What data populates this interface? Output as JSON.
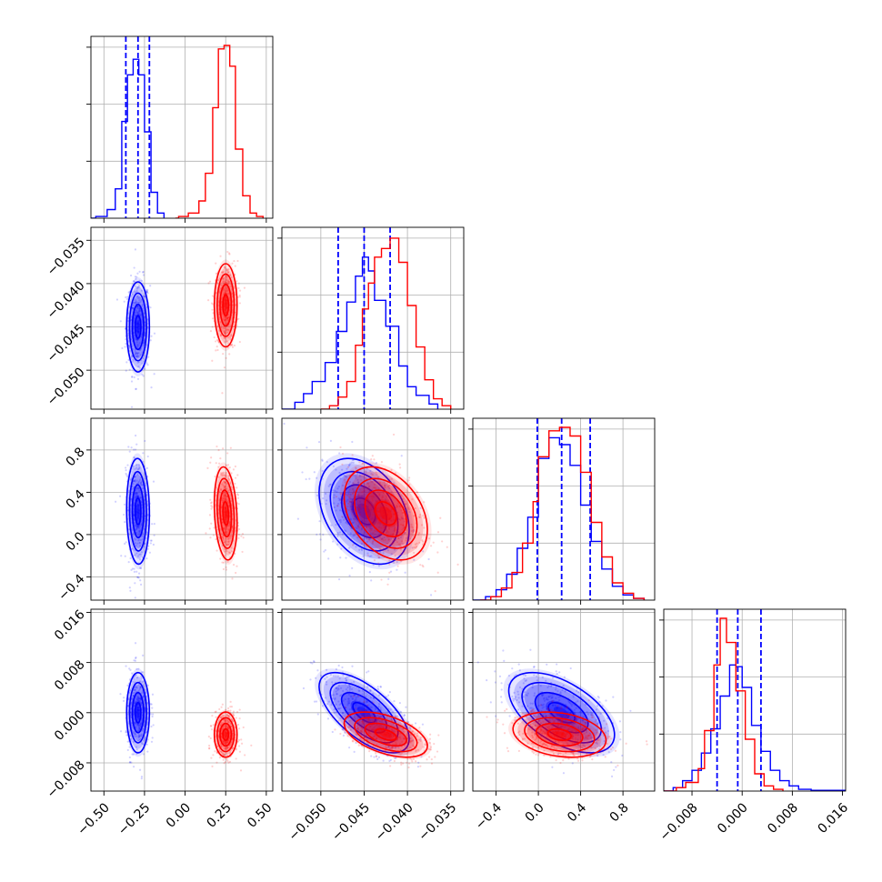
{
  "colors": {
    "blue": "#0000ff",
    "red": "#ff0000",
    "grid": "#b0b0b0"
  },
  "chart_data": {
    "type": "corner",
    "grid": true,
    "legend": "none",
    "parameters": [
      {
        "ticks": [
          -0.5,
          -0.25,
          0.0,
          0.25,
          0.5
        ],
        "tick_labels": [
          "−0.50",
          "−0.25",
          "0.00",
          "0.25",
          "0.50"
        ],
        "range": [
          -0.58,
          0.54
        ]
      },
      {
        "ticks": [
          -0.05,
          -0.045,
          -0.04,
          -0.035
        ],
        "tick_labels": [
          "−0.050",
          "−0.045",
          "−0.040",
          "−0.035"
        ],
        "range": [
          -0.0545,
          -0.0335
        ]
      },
      {
        "ticks": [
          -0.4,
          0.0,
          0.4,
          0.8
        ],
        "tick_labels": [
          "−0.4",
          "0.0",
          "0.4",
          "0.8"
        ],
        "range": [
          -0.62,
          1.1
        ]
      },
      {
        "ticks": [
          -0.008,
          0.0,
          0.008,
          0.016
        ],
        "tick_labels": [
          "−0.008",
          "0.000",
          "0.008",
          "0.016"
        ],
        "range": [
          -0.0125,
          0.0165
        ]
      }
    ],
    "series": [
      {
        "color": "#0000ff",
        "means": [
          -0.29,
          -0.045,
          0.22,
          0.0
        ],
        "sds": [
          0.035,
          0.0026,
          0.25,
          0.0032
        ],
        "correlations": [
          [
            0,
            2,
            -0.05
          ],
          [
            0,
            3,
            0.0
          ],
          [
            1,
            2,
            -0.35
          ],
          [
            1,
            3,
            -0.65
          ],
          [
            2,
            3,
            -0.55
          ]
        ],
        "quantiles": [
          [
            -0.365,
            -0.29,
            -0.22
          ],
          [
            -0.048,
            -0.045,
            -0.042
          ],
          [
            -0.01,
            0.22,
            0.49
          ],
          [
            -0.004,
            -0.0007,
            0.003
          ]
        ],
        "hist1d": [
          [
            [
              -0.58,
              0
            ],
            [
              -0.55,
              0.01
            ],
            [
              -0.48,
              0.05
            ],
            [
              -0.43,
              0.17
            ],
            [
              -0.39,
              0.56
            ],
            [
              -0.355,
              0.83
            ],
            [
              -0.32,
              0.92
            ],
            [
              -0.285,
              0.83
            ],
            [
              -0.25,
              0.5
            ],
            [
              -0.21,
              0.15
            ],
            [
              -0.17,
              0.03
            ],
            [
              -0.13,
              0
            ]
          ],
          [
            [
              -0.0545,
              0
            ],
            [
              -0.053,
              0.04
            ],
            [
              -0.052,
              0.09
            ],
            [
              -0.051,
              0.16
            ],
            [
              -0.0495,
              0.27
            ],
            [
              -0.0482,
              0.45
            ],
            [
              -0.047,
              0.62
            ],
            [
              -0.046,
              0.77
            ],
            [
              -0.0452,
              0.88
            ],
            [
              -0.0445,
              0.8
            ],
            [
              -0.0438,
              0.63
            ],
            [
              -0.0425,
              0.48
            ],
            [
              -0.041,
              0.25
            ],
            [
              -0.04,
              0.13
            ],
            [
              -0.039,
              0.08
            ],
            [
              -0.0375,
              0.03
            ],
            [
              -0.0365,
              0
            ]
          ],
          [
            [
              -0.62,
              0
            ],
            [
              -0.5,
              0.02
            ],
            [
              -0.4,
              0.06
            ],
            [
              -0.3,
              0.15
            ],
            [
              -0.2,
              0.3
            ],
            [
              -0.1,
              0.48
            ],
            [
              0.0,
              0.82
            ],
            [
              0.1,
              0.94
            ],
            [
              0.2,
              0.9
            ],
            [
              0.3,
              0.78
            ],
            [
              0.4,
              0.55
            ],
            [
              0.5,
              0.34
            ],
            [
              0.6,
              0.18
            ],
            [
              0.7,
              0.08
            ],
            [
              0.8,
              0.03
            ],
            [
              0.9,
              0.01
            ],
            [
              1.0,
              0
            ]
          ],
          [
            [
              -0.0125,
              0
            ],
            [
              -0.011,
              0.02
            ],
            [
              -0.0095,
              0.06
            ],
            [
              -0.008,
              0.12
            ],
            [
              -0.0065,
              0.22
            ],
            [
              -0.005,
              0.36
            ],
            [
              -0.0035,
              0.55
            ],
            [
              -0.002,
              0.73
            ],
            [
              -0.001,
              0.72
            ],
            [
              0.0,
              0.6
            ],
            [
              0.0015,
              0.38
            ],
            [
              0.003,
              0.23
            ],
            [
              0.0045,
              0.12
            ],
            [
              0.006,
              0.06
            ],
            [
              0.0075,
              0.03
            ],
            [
              0.009,
              0.01
            ],
            [
              0.011,
              0.004
            ],
            [
              0.0165,
              0
            ]
          ]
        ]
      },
      {
        "color": "#ff0000",
        "means": [
          0.25,
          -0.0425,
          0.2,
          -0.0035
        ],
        "sds": [
          0.035,
          0.0024,
          0.22,
          0.0018
        ],
        "correlations": [
          [
            0,
            2,
            -0.2
          ],
          [
            0,
            3,
            0.0
          ],
          [
            1,
            2,
            -0.35
          ],
          [
            1,
            3,
            -0.5
          ],
          [
            2,
            3,
            -0.25
          ]
        ],
        "quantiles": null,
        "hist1d": [
          [
            [
              -0.06,
              0
            ],
            [
              -0.04,
              0.01
            ],
            [
              0.02,
              0.03
            ],
            [
              0.085,
              0.1
            ],
            [
              0.125,
              0.26
            ],
            [
              0.17,
              0.64
            ],
            [
              0.205,
              0.98
            ],
            [
              0.24,
              1.0
            ],
            [
              0.275,
              0.88
            ],
            [
              0.31,
              0.4
            ],
            [
              0.355,
              0.13
            ],
            [
              0.4,
              0.03
            ],
            [
              0.44,
              0.01
            ],
            [
              0.48,
              0
            ]
          ],
          [
            [
              -0.05,
              0
            ],
            [
              -0.049,
              0.02
            ],
            [
              -0.048,
              0.07
            ],
            [
              -0.047,
              0.16
            ],
            [
              -0.046,
              0.37
            ],
            [
              -0.0452,
              0.58
            ],
            [
              -0.0445,
              0.73
            ],
            [
              -0.0438,
              0.88
            ],
            [
              -0.043,
              0.93
            ],
            [
              -0.042,
              0.99
            ],
            [
              -0.041,
              0.85
            ],
            [
              -0.04,
              0.6
            ],
            [
              -0.039,
              0.36
            ],
            [
              -0.038,
              0.17
            ],
            [
              -0.037,
              0.06
            ],
            [
              -0.036,
              0.02
            ],
            [
              -0.035,
              0
            ]
          ],
          [
            [
              -0.55,
              0
            ],
            [
              -0.45,
              0.02
            ],
            [
              -0.35,
              0.07
            ],
            [
              -0.25,
              0.16
            ],
            [
              -0.15,
              0.33
            ],
            [
              -0.05,
              0.57
            ],
            [
              0.0,
              0.83
            ],
            [
              0.1,
              0.98
            ],
            [
              0.2,
              1.0
            ],
            [
              0.3,
              0.95
            ],
            [
              0.4,
              0.74
            ],
            [
              0.5,
              0.45
            ],
            [
              0.6,
              0.25
            ],
            [
              0.7,
              0.1
            ],
            [
              0.8,
              0.04
            ],
            [
              0.9,
              0.01
            ],
            [
              1.0,
              0
            ]
          ],
          [
            [
              -0.0125,
              0
            ],
            [
              -0.0105,
              0.02
            ],
            [
              -0.009,
              0.05
            ],
            [
              -0.007,
              0.13
            ],
            [
              -0.006,
              0.35
            ],
            [
              -0.0045,
              0.73
            ],
            [
              -0.0035,
              1.0
            ],
            [
              -0.0025,
              0.86
            ],
            [
              -0.001,
              0.58
            ],
            [
              0.0005,
              0.3
            ],
            [
              0.002,
              0.1
            ],
            [
              0.0035,
              0.03
            ],
            [
              0.005,
              0.01
            ],
            [
              0.0065,
              0
            ]
          ]
        ]
      }
    ]
  }
}
